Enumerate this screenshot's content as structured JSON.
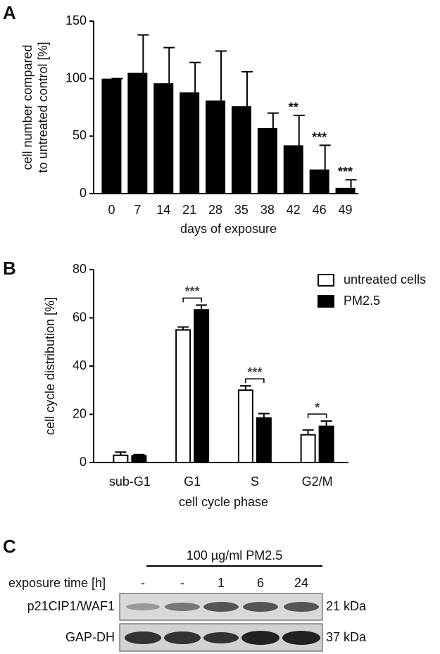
{
  "chart_data": [
    {
      "type": "bar",
      "panel_label": "A",
      "y_label": [
        "cell number compared",
        "to untreated control [%]"
      ],
      "x_label": "days of exposure",
      "categories": [
        "0",
        "7",
        "14",
        "21",
        "28",
        "35",
        "38",
        "42",
        "46",
        "49"
      ],
      "values": [
        100,
        105,
        96,
        88,
        81,
        76,
        57,
        42,
        21,
        5
      ],
      "errors": [
        0,
        33,
        31,
        26,
        43,
        30,
        13,
        26,
        21,
        7
      ],
      "significance": [
        null,
        null,
        null,
        null,
        null,
        null,
        null,
        "**",
        "***",
        "***"
      ],
      "color": "#000000",
      "ylim": [
        0,
        150
      ],
      "yticks": [
        0,
        50,
        100,
        150
      ]
    },
    {
      "type": "grouped_bar",
      "panel_label": "B",
      "y_label": "cell cycle distribution [%]",
      "x_label": "cell cycle phase",
      "categories": [
        "sub-G1",
        "G1",
        "S",
        "G2/M"
      ],
      "series": [
        {
          "name": "untreated cells",
          "color": "#ffffff",
          "values": [
            3,
            55,
            30,
            11.5
          ],
          "errors": [
            1.3,
            1.2,
            1.8,
            2
          ]
        },
        {
          "name": "PM2.5",
          "color": "#000000",
          "values": [
            2.8,
            63.3,
            18.5,
            15
          ],
          "errors": [
            0.5,
            2,
            1.8,
            2.2
          ]
        }
      ],
      "significance": [
        null,
        "***",
        "***",
        "*"
      ],
      "legend": "top-right",
      "ylim": [
        0,
        80
      ],
      "yticks": [
        0,
        20,
        40,
        60,
        80
      ]
    }
  ],
  "blot": {
    "panel_label": "C",
    "treatment": "100 µg/ml PM2.5",
    "row_header": "exposure time [h]",
    "lanes": [
      "-",
      "-",
      "1",
      "6",
      "24"
    ],
    "rows": [
      {
        "protein": "p21CIP1/WAF1",
        "size": "21 kDa"
      },
      {
        "protein": "GAP-DH",
        "size": "37 kDa"
      }
    ]
  }
}
